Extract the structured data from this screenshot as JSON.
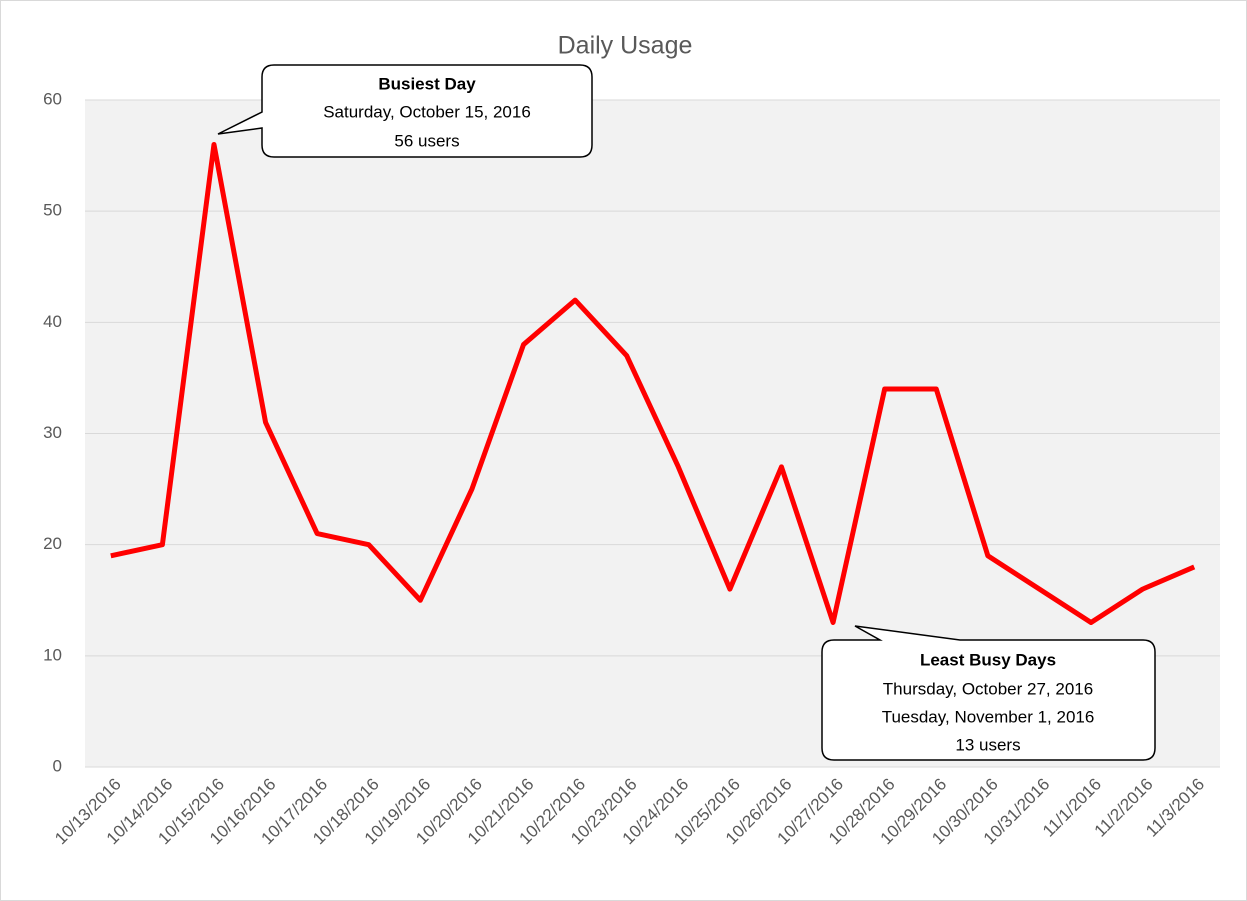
{
  "chart_data": {
    "type": "line",
    "title": "Daily Usage",
    "categories": [
      "10/13/2016",
      "10/14/2016",
      "10/15/2016",
      "10/16/2016",
      "10/17/2016",
      "10/18/2016",
      "10/19/2016",
      "10/20/2016",
      "10/21/2016",
      "10/22/2016",
      "10/23/2016",
      "10/24/2016",
      "10/25/2016",
      "10/26/2016",
      "10/27/2016",
      "10/28/2016",
      "10/29/2016",
      "10/30/2016",
      "10/31/2016",
      "11/1/2016",
      "11/2/2016",
      "11/3/2016"
    ],
    "series": [
      {
        "name": "Users",
        "color": "#ff0000",
        "values": [
          19,
          20,
          56,
          31,
          21,
          20,
          15,
          25,
          38,
          42,
          37,
          27,
          16,
          27,
          13,
          34,
          34,
          19,
          16,
          13,
          16,
          18
        ]
      }
    ],
    "ylim": [
      0,
      60
    ],
    "yticks": [
      0,
      10,
      20,
      30,
      40,
      50,
      60
    ],
    "grid": true,
    "annotations": [
      {
        "title": "Busiest Day",
        "lines": [
          "Saturday, October 15, 2016",
          "56 users"
        ]
      },
      {
        "title": "Least Busy Days",
        "lines": [
          "Thursday, October 27, 2016",
          "Tuesday, November 1, 2016",
          "13 users"
        ]
      }
    ]
  }
}
